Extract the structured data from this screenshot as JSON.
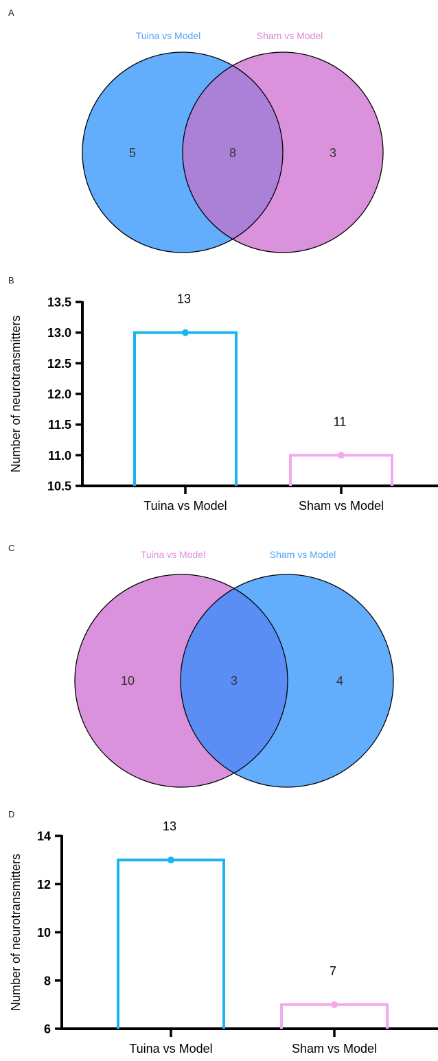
{
  "panels": {
    "a": "A",
    "b": "B",
    "c": "C",
    "d": "D"
  },
  "chart_data": [
    {
      "panel": "A",
      "type": "venn",
      "sets": [
        {
          "name": "Tuina vs Model",
          "only": 5,
          "color": "#62aefc",
          "label_color": "#4ea3f7"
        },
        {
          "name": "Sham vs Model",
          "only": 3,
          "color": "#db92dc",
          "label_color": "#d985d6"
        }
      ],
      "overlap": 8,
      "overlap_color": "#ab81d8"
    },
    {
      "panel": "B",
      "type": "bar",
      "categories": [
        "Tuina vs Model",
        "Sham vs Model"
      ],
      "values": [
        13,
        11
      ],
      "data_labels": [
        "13",
        "11"
      ],
      "colors": [
        "#1cb4ee",
        "#f4a9ec"
      ],
      "ylabel": "Number of neurotransmitters",
      "ylim": [
        10.5,
        13.5
      ],
      "yticks": [
        "10.5",
        "11.0",
        "11.5",
        "12.0",
        "12.5",
        "13.0",
        "13.5"
      ]
    },
    {
      "panel": "C",
      "type": "venn",
      "sets": [
        {
          "name": "Tuina vs Model",
          "only": 10,
          "color": "#db92dc",
          "label_color": "#e08ee0"
        },
        {
          "name": "Sham vs Model",
          "only": 4,
          "color": "#62aefc",
          "label_color": "#4ea3f7"
        }
      ],
      "overlap": 3,
      "overlap_color": "#5a8ef4"
    },
    {
      "panel": "D",
      "type": "bar",
      "categories": [
        "Tuina vs Model",
        "Sham vs Model"
      ],
      "values": [
        13,
        7
      ],
      "data_labels": [
        "13",
        "7"
      ],
      "colors": [
        "#1cb4ee",
        "#f4a9ec"
      ],
      "ylabel": "Number of neurotransmitters",
      "ylim": [
        6,
        14
      ],
      "yticks": [
        "6",
        "8",
        "10",
        "12",
        "14"
      ]
    }
  ]
}
